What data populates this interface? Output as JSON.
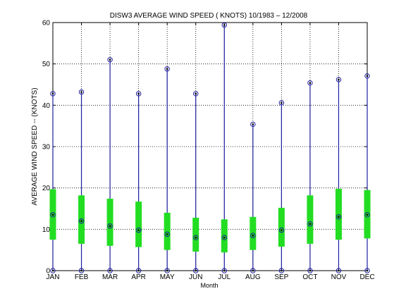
{
  "chart_data": {
    "type": "box",
    "title": "DISW3  AVERAGE WIND SPEED ( KNOTS) 10/1983 – 12/2008",
    "xlabel": "Month",
    "ylabel": "AVERAGE WIND SPEED -- (KNOTS)",
    "ylim": [
      0,
      60
    ],
    "yticks": [
      0,
      10,
      20,
      30,
      40,
      50,
      60
    ],
    "grid": true,
    "categories": [
      "JAN",
      "FEB",
      "MAR",
      "APR",
      "MAY",
      "JUN",
      "JUL",
      "AUG",
      "SEP",
      "OCT",
      "NOV",
      "DEC"
    ],
    "series": [
      {
        "min": [
          0,
          0,
          0,
          0,
          0,
          0,
          0,
          0,
          0,
          0,
          0,
          0
        ],
        "q1": [
          7.5,
          6.5,
          6.0,
          5.7,
          5.0,
          4.6,
          4.4,
          5.0,
          5.8,
          6.5,
          7.5,
          7.8
        ],
        "median": [
          13.5,
          12.0,
          10.8,
          9.8,
          8.8,
          8.0,
          8.0,
          8.5,
          9.8,
          11.3,
          13.0,
          13.5
        ],
        "q3": [
          19.7,
          18.2,
          17.4,
          16.7,
          14.0,
          12.8,
          12.4,
          13.0,
          15.2,
          18.2,
          19.8,
          19.5
        ],
        "max": [
          42.8,
          43.2,
          51.0,
          42.8,
          48.8,
          42.8,
          59.4,
          35.4,
          40.6,
          45.4,
          46.2,
          47.1
        ]
      }
    ],
    "colors": {
      "whisker": "#1e1ea0",
      "box": "#22dd22",
      "marker": "#000000",
      "grid": "#000000"
    }
  }
}
